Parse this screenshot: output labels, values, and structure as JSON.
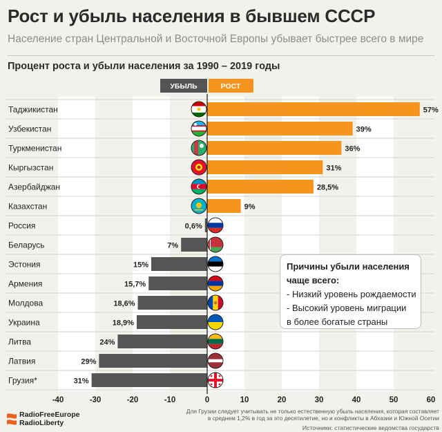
{
  "title": "Рост и убыль населения в бывшем СССР",
  "subtitle": "Население стран Центральной и Восточной Европы убывает быстрее всего в мире",
  "chart_data": {
    "type": "bar",
    "orientation": "horizontal",
    "title": "Процент роста и убыли населения за 1990 – 2019 годы",
    "legend": {
      "decline_label": "УБЫЛЬ",
      "growth_label": "РОСТ"
    },
    "categories": [
      "Таджикистан",
      "Узбекистан",
      "Туркменистан",
      "Кыргызстан",
      "Азербайджан",
      "Казахстан",
      "Россия",
      "Беларусь",
      "Эстония",
      "Армения",
      "Молдова",
      "Украина",
      "Литва",
      "Латвия",
      "Грузия*"
    ],
    "values": [
      57,
      39,
      36,
      31,
      28.5,
      9,
      -0.6,
      -7,
      -15,
      -15.7,
      -18.6,
      -18.9,
      -24,
      -29,
      -31
    ],
    "value_labels": [
      "57%",
      "39%",
      "36%",
      "31%",
      "28,5%",
      "9%",
      "0,6%",
      "7%",
      "15%",
      "15,7%",
      "18,6%",
      "18,9%",
      "24%",
      "29%",
      "31%"
    ],
    "xlim": [
      -40,
      60
    ],
    "x_ticks": [
      -40,
      -30,
      -20,
      -10,
      0,
      10,
      20,
      30,
      40,
      50,
      60
    ],
    "grid": true,
    "colors": {
      "growth": "#f7941d",
      "decline": "#555555",
      "gridband": "#ffffff",
      "background": "#f3f1ec"
    }
  },
  "flags": [
    "tajikistan-flag-icon",
    "uzbekistan-flag-icon",
    "turkmenistan-flag-icon",
    "kyrgyzstan-flag-icon",
    "azerbaijan-flag-icon",
    "kazakhstan-flag-icon",
    "russia-flag-icon",
    "belarus-flag-icon",
    "estonia-flag-icon",
    "armenia-flag-icon",
    "moldova-flag-icon",
    "ukraine-flag-icon",
    "lithuania-flag-icon",
    "latvia-flag-icon",
    "georgia-flag-icon"
  ],
  "note": {
    "title_line1": "Причины убыли населения",
    "title_line2": "чаще всего:",
    "line1": "- Низкий уровень рождаемости",
    "line2": "- Высокий уровень миграции",
    "line3": "в более богатые страны"
  },
  "footer": {
    "logo_line1": "RadioFreeEurope",
    "logo_line2": "RadioLiberty",
    "footnote_line1": "Для Грузии следует учитывать не только естественную убыль населения, которая составляет",
    "footnote_line2": "в среднем 1,2% в год за это десятилетие, но и конфликты в Абхазии и Южной Осетии",
    "source": "Источники: статистические ведомства государств"
  }
}
